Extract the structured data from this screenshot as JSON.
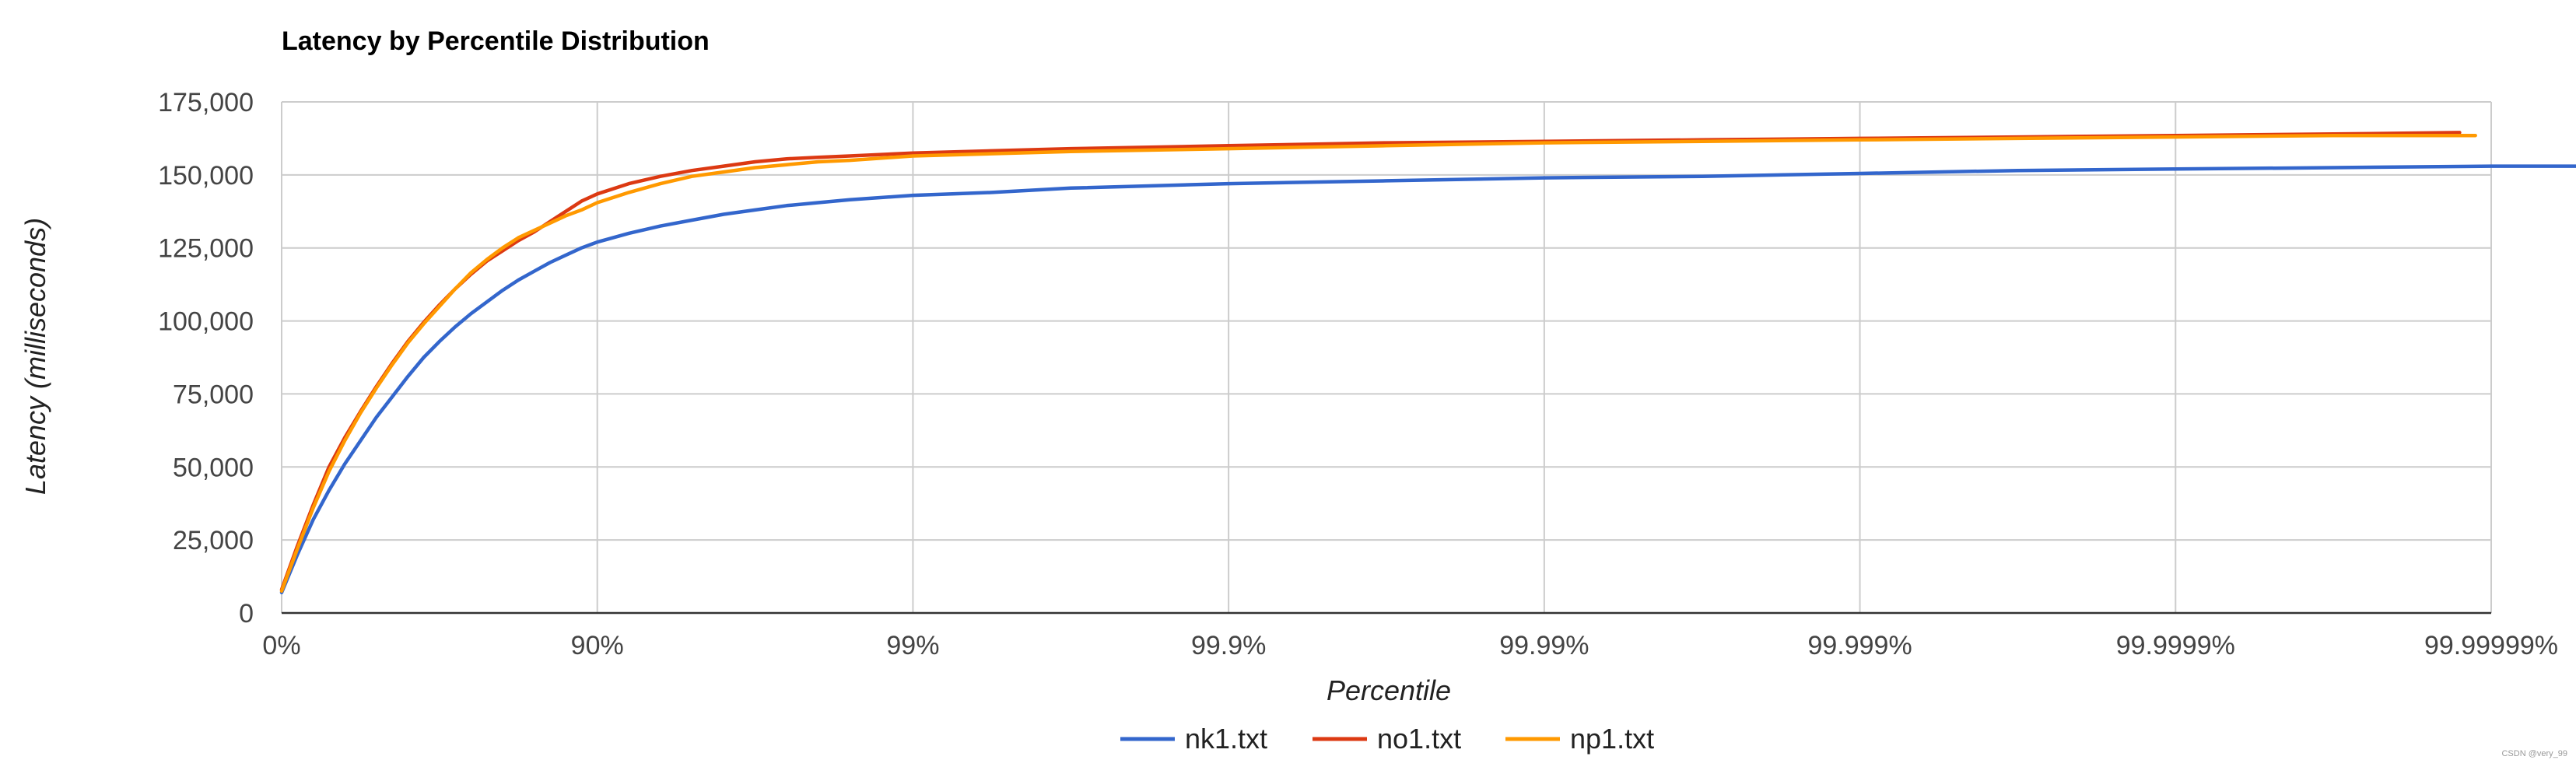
{
  "chart_data": {
    "type": "line",
    "title": "Latency by Percentile Distribution",
    "xlabel": "Percentile",
    "ylabel": "Latency (milliseconds)",
    "x_scale": "log-percentile (1/(1-p))",
    "x_ticks": [
      "0%",
      "90%",
      "99%",
      "99.9%",
      "99.99%",
      "99.999%",
      "99.9999%",
      "99.99999%"
    ],
    "y_ticks": [
      "0",
      "25,000",
      "50,000",
      "75,000",
      "100,000",
      "125,000",
      "150,000",
      "175,000"
    ],
    "ylim": [
      0,
      175000
    ],
    "grid": true,
    "legend_position": "bottom",
    "series": [
      {
        "name": "nk1.txt",
        "color": "#3366cc",
        "points": [
          [
            0,
            7000
          ],
          [
            0.05,
            20000
          ],
          [
            0.1,
            32000
          ],
          [
            0.15,
            42000
          ],
          [
            0.2,
            51000
          ],
          [
            0.25,
            59000
          ],
          [
            0.3,
            67000
          ],
          [
            0.35,
            74000
          ],
          [
            0.4,
            81000
          ],
          [
            0.45,
            87500
          ],
          [
            0.5,
            93000
          ],
          [
            0.55,
            98000
          ],
          [
            0.6,
            102500
          ],
          [
            0.65,
            106500
          ],
          [
            0.7,
            110500
          ],
          [
            0.75,
            114000
          ],
          [
            0.8,
            117000
          ],
          [
            0.85,
            120000
          ],
          [
            0.9,
            122500
          ],
          [
            0.95,
            125000
          ],
          [
            1.0,
            127000
          ],
          [
            1.1,
            130000
          ],
          [
            1.2,
            132500
          ],
          [
            1.3,
            134500
          ],
          [
            1.4,
            136500
          ],
          [
            1.5,
            138000
          ],
          [
            1.6,
            139500
          ],
          [
            1.7,
            140500
          ],
          [
            1.8,
            141500
          ],
          [
            2.0,
            143000
          ],
          [
            2.25,
            144000
          ],
          [
            2.5,
            145500
          ],
          [
            3.0,
            147000
          ],
          [
            3.5,
            148000
          ],
          [
            4.0,
            149000
          ],
          [
            4.5,
            149500
          ],
          [
            5.0,
            150500
          ],
          [
            5.5,
            151500
          ],
          [
            6.0,
            152000
          ],
          [
            6.5,
            152500
          ],
          [
            7.0,
            153000
          ],
          [
            7.3,
            153000
          ]
        ]
      },
      {
        "name": "no1.txt",
        "color": "#dc3912",
        "points": [
          [
            0,
            8000
          ],
          [
            0.05,
            23000
          ],
          [
            0.1,
            37000
          ],
          [
            0.15,
            50000
          ],
          [
            0.2,
            60000
          ],
          [
            0.25,
            69000
          ],
          [
            0.3,
            77500
          ],
          [
            0.35,
            85500
          ],
          [
            0.4,
            93000
          ],
          [
            0.45,
            99500
          ],
          [
            0.5,
            105500
          ],
          [
            0.55,
            111000
          ],
          [
            0.6,
            116000
          ],
          [
            0.65,
            120500
          ],
          [
            0.7,
            124000
          ],
          [
            0.75,
            127500
          ],
          [
            0.8,
            130500
          ],
          [
            0.85,
            134000
          ],
          [
            0.9,
            137500
          ],
          [
            0.95,
            141000
          ],
          [
            1.0,
            143500
          ],
          [
            1.1,
            147000
          ],
          [
            1.2,
            149500
          ],
          [
            1.3,
            151500
          ],
          [
            1.4,
            153000
          ],
          [
            1.5,
            154500
          ],
          [
            1.6,
            155500
          ],
          [
            1.7,
            156000
          ],
          [
            1.8,
            156500
          ],
          [
            2.0,
            157500
          ],
          [
            2.5,
            159000
          ],
          [
            3.0,
            160000
          ],
          [
            3.5,
            161000
          ],
          [
            4.0,
            161500
          ],
          [
            4.5,
            162000
          ],
          [
            5.0,
            162500
          ],
          [
            5.5,
            163000
          ],
          [
            6.0,
            163500
          ],
          [
            6.5,
            164000
          ],
          [
            6.9,
            164500
          ]
        ]
      },
      {
        "name": "np1.txt",
        "color": "#ff9900",
        "points": [
          [
            0,
            7500
          ],
          [
            0.05,
            22000
          ],
          [
            0.1,
            36000
          ],
          [
            0.15,
            48500
          ],
          [
            0.2,
            59000
          ],
          [
            0.25,
            68500
          ],
          [
            0.3,
            77000
          ],
          [
            0.35,
            85000
          ],
          [
            0.4,
            92500
          ],
          [
            0.45,
            99000
          ],
          [
            0.5,
            105000
          ],
          [
            0.55,
            111000
          ],
          [
            0.6,
            116500
          ],
          [
            0.65,
            121000
          ],
          [
            0.7,
            125000
          ],
          [
            0.75,
            128500
          ],
          [
            0.8,
            131000
          ],
          [
            0.85,
            133500
          ],
          [
            0.9,
            136000
          ],
          [
            0.95,
            138000
          ],
          [
            1.0,
            140500
          ],
          [
            1.1,
            144000
          ],
          [
            1.2,
            147000
          ],
          [
            1.3,
            149500
          ],
          [
            1.4,
            151000
          ],
          [
            1.5,
            152500
          ],
          [
            1.6,
            153500
          ],
          [
            1.7,
            154500
          ],
          [
            1.8,
            155000
          ],
          [
            2.0,
            156500
          ],
          [
            2.5,
            158000
          ],
          [
            3.0,
            159000
          ],
          [
            3.5,
            160000
          ],
          [
            4.0,
            161000
          ],
          [
            4.5,
            161500
          ],
          [
            5.0,
            162000
          ],
          [
            5.5,
            162500
          ],
          [
            6.0,
            163000
          ],
          [
            6.5,
            163500
          ],
          [
            6.95,
            163500
          ]
        ]
      }
    ]
  },
  "watermark": "CSDN @very_99"
}
